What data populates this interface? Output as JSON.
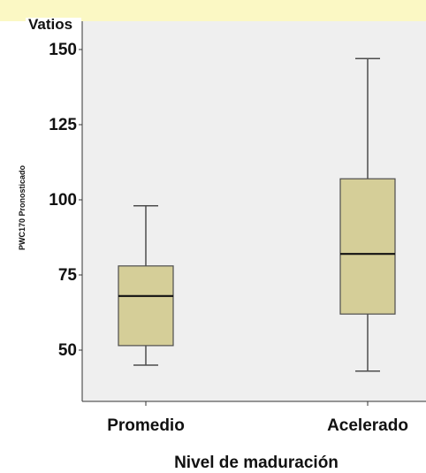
{
  "header": {
    "unit_text": "Vatios"
  },
  "chart_data": {
    "type": "boxplot",
    "xlabel": "Nivel de maduración",
    "ylabel": "PWC170 Pronosticado",
    "categories": [
      "Promedio",
      "Acelerado"
    ],
    "boxes": [
      {
        "category": "Promedio",
        "min": 45,
        "q1": 51.5,
        "median": 68,
        "q3": 78,
        "max": 98
      },
      {
        "category": "Acelerado",
        "min": 43,
        "q1": 62,
        "median": 82,
        "q3": 107,
        "max": 147
      }
    ],
    "ylim": [
      35,
      155
    ],
    "yticks": [
      50,
      75,
      100,
      125,
      150
    ],
    "grid": false,
    "colors": {
      "box_fill": "#d5ce98",
      "box_stroke": "#4d4d4d",
      "panel_bg": "#efefef",
      "banner": "#fbf8c4"
    }
  }
}
